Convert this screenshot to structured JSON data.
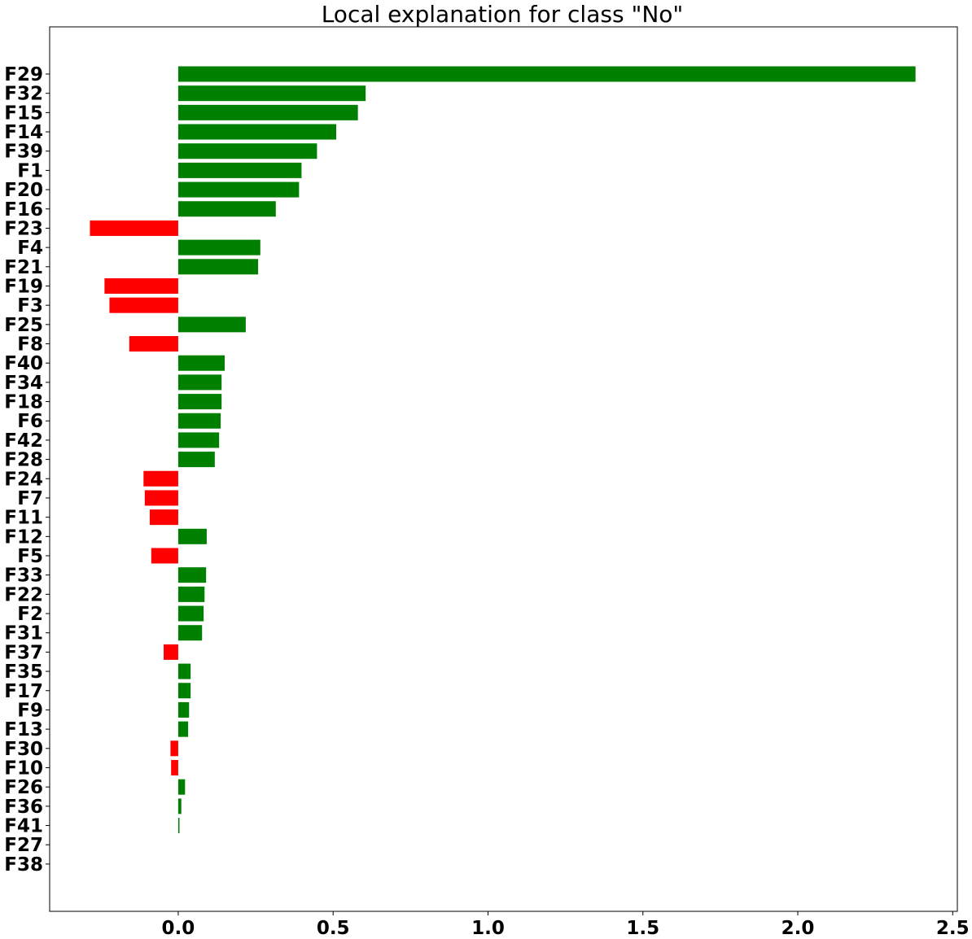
{
  "chart_data": {
    "type": "bar",
    "orientation": "horizontal",
    "title": "Local explanation for class \"No\"",
    "xlabel": "",
    "ylabel": "",
    "xlim": [
      -0.415,
      2.515
    ],
    "xticks": [
      0.0,
      0.5,
      1.0,
      1.5,
      2.0,
      2.5
    ],
    "xtick_labels": [
      "0.0",
      "0.5",
      "1.0",
      "1.5",
      "2.0",
      "2.5"
    ],
    "grid": false,
    "positive_color": "#008000",
    "negative_color": "#ff0000",
    "categories": [
      "F29",
      "F32",
      "F15",
      "F14",
      "F39",
      "F1",
      "F20",
      "F16",
      "F23",
      "F4",
      "F21",
      "F19",
      "F3",
      "F25",
      "F8",
      "F40",
      "F34",
      "F18",
      "F6",
      "F42",
      "F28",
      "F24",
      "F7",
      "F11",
      "F12",
      "F5",
      "F33",
      "F22",
      "F2",
      "F31",
      "F37",
      "F35",
      "F17",
      "F9",
      "F13",
      "F30",
      "F10",
      "F26",
      "F36",
      "F41",
      "F27",
      "F38"
    ],
    "values": [
      2.38,
      0.605,
      0.58,
      0.51,
      0.448,
      0.398,
      0.39,
      0.315,
      -0.285,
      0.265,
      0.258,
      -0.238,
      -0.222,
      0.218,
      -0.158,
      0.15,
      0.14,
      0.14,
      0.137,
      0.132,
      0.118,
      -0.112,
      -0.108,
      -0.092,
      0.092,
      -0.087,
      0.09,
      0.085,
      0.082,
      0.077,
      -0.047,
      0.04,
      0.04,
      0.035,
      0.032,
      -0.025,
      -0.023,
      0.022,
      0.01,
      0.004,
      0.0,
      0.0
    ]
  }
}
